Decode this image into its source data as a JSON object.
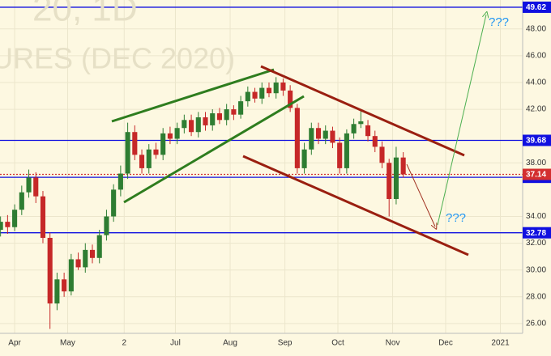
{
  "chart_data": {
    "type": "candlestick",
    "watermark": [
      "20, 1D",
      "URES (DEC 2020)"
    ],
    "annotations": [
      "???",
      "???"
    ],
    "x": [
      84,
      88,
      92,
      96,
      100,
      104,
      108,
      112,
      116,
      120,
      124,
      128,
      132,
      136,
      140,
      144,
      148,
      152,
      156,
      160,
      164,
      168,
      172,
      176,
      180,
      184,
      188,
      192,
      196,
      200,
      204,
      208,
      212,
      216,
      220,
      224,
      228,
      232,
      236,
      240,
      244,
      248,
      252,
      256,
      260,
      264,
      268,
      272,
      276,
      280,
      284,
      288,
      292,
      296,
      300,
      304,
      308,
      312
    ],
    "open": [
      33.0,
      33.6,
      33.2,
      34.5,
      35.8,
      36.9,
      35.5,
      32.4,
      27.5,
      29.3,
      28.4,
      30.8,
      30.2,
      31.5,
      30.9,
      32.6,
      34.0,
      36.0,
      37.2,
      40.3,
      38.6,
      37.6,
      39.0,
      38.6,
      40.2,
      39.8,
      40.6,
      41.2,
      40.3,
      41.4,
      40.8,
      41.7,
      41.2,
      42.0,
      41.6,
      42.6,
      43.3,
      42.8,
      43.6,
      43.2,
      44.0,
      43.4,
      42.1,
      37.6,
      39.0,
      40.6,
      39.8,
      40.4,
      39.5,
      37.6,
      40.2,
      40.9,
      40.8,
      40.0,
      39.2,
      38.0,
      35.3,
      38.4
    ],
    "high": [
      34.0,
      34.1,
      34.9,
      36.3,
      37.5,
      37.3,
      35.9,
      32.8,
      29.8,
      29.8,
      31.2,
      31.3,
      32.0,
      31.9,
      33.0,
      34.5,
      36.4,
      37.8,
      41.0,
      40.8,
      39.0,
      39.4,
      39.5,
      40.6,
      40.7,
      41.0,
      41.6,
      41.6,
      41.8,
      41.8,
      42.0,
      42.1,
      42.4,
      42.3,
      43.0,
      43.7,
      43.6,
      44.0,
      44.0,
      44.4,
      44.3,
      43.8,
      42.4,
      39.5,
      41.0,
      41.0,
      40.8,
      40.7,
      39.9,
      40.5,
      41.3,
      41.9,
      41.2,
      40.4,
      39.6,
      38.3,
      39.2,
      38.8
    ],
    "low": [
      32.5,
      32.7,
      32.9,
      34.1,
      35.4,
      35.0,
      32.0,
      25.6,
      27.0,
      28.0,
      28.1,
      30.0,
      29.8,
      30.5,
      30.5,
      32.2,
      33.6,
      35.5,
      36.8,
      38.2,
      37.2,
      37.2,
      38.3,
      38.2,
      39.4,
      39.4,
      40.2,
      40.0,
      39.9,
      40.4,
      40.4,
      40.9,
      40.8,
      41.2,
      41.3,
      42.2,
      42.5,
      42.4,
      42.9,
      42.8,
      43.0,
      41.8,
      37.2,
      37.2,
      38.6,
      39.4,
      39.4,
      39.1,
      37.2,
      37.2,
      39.8,
      40.6,
      39.6,
      38.8,
      37.6,
      34.0,
      34.9,
      36.9
    ],
    "close": [
      33.6,
      33.2,
      34.5,
      35.8,
      36.9,
      35.5,
      32.4,
      27.5,
      29.3,
      28.4,
      30.8,
      30.2,
      31.5,
      30.9,
      32.6,
      34.0,
      36.0,
      37.2,
      40.3,
      38.6,
      37.6,
      39.0,
      38.6,
      40.2,
      39.8,
      40.6,
      41.2,
      40.3,
      41.4,
      40.8,
      41.7,
      41.2,
      42.0,
      41.6,
      42.6,
      43.3,
      42.8,
      43.6,
      43.2,
      44.0,
      43.4,
      42.1,
      37.6,
      39.0,
      40.6,
      39.8,
      40.4,
      39.5,
      37.6,
      40.2,
      40.9,
      41.1,
      40.0,
      39.2,
      38.0,
      35.3,
      38.4,
      37.14
    ],
    "up_color": "#2e7d32",
    "down_color": "#c62828",
    "price_lines": [
      {
        "value": 49.62,
        "color": "#1010e0"
      },
      {
        "value": 39.68,
        "color": "#1010e0"
      },
      {
        "value": 36.92,
        "color": "#1010e0"
      },
      {
        "value": 32.78,
        "color": "#1010e0"
      },
      {
        "value": 37.14,
        "color": "#d32f2f"
      }
    ],
    "xlim": [
      83.7,
      379.6
    ],
    "ylim": [
      25.27,
      50.16
    ],
    "xticks": [
      {
        "value": 92,
        "label": "Apr"
      },
      {
        "value": 122,
        "label": "May"
      },
      {
        "value": 154,
        "label": "2"
      },
      {
        "value": 183,
        "label": "Jul"
      },
      {
        "value": 214,
        "label": "Aug"
      },
      {
        "value": 245,
        "label": "Sep"
      },
      {
        "value": 275,
        "label": "Oct"
      },
      {
        "value": 306,
        "label": "Nov"
      },
      {
        "value": 336,
        "label": "Dec"
      },
      {
        "value": 367,
        "label": "2021"
      }
    ],
    "yticks": [
      {
        "value": 48,
        "label": "48.00"
      },
      {
        "value": 46,
        "label": "46.00"
      },
      {
        "value": 44,
        "label": "44.00"
      },
      {
        "value": 42,
        "label": "42.00"
      },
      {
        "value": 38,
        "label": "38.00"
      },
      {
        "value": 34,
        "label": "34.00"
      },
      {
        "value": 32,
        "label": "32.00"
      },
      {
        "value": 30,
        "label": "30.00"
      },
      {
        "value": 28,
        "label": "28.00"
      },
      {
        "value": 26,
        "label": "26.00"
      }
    ],
    "grid": true
  }
}
